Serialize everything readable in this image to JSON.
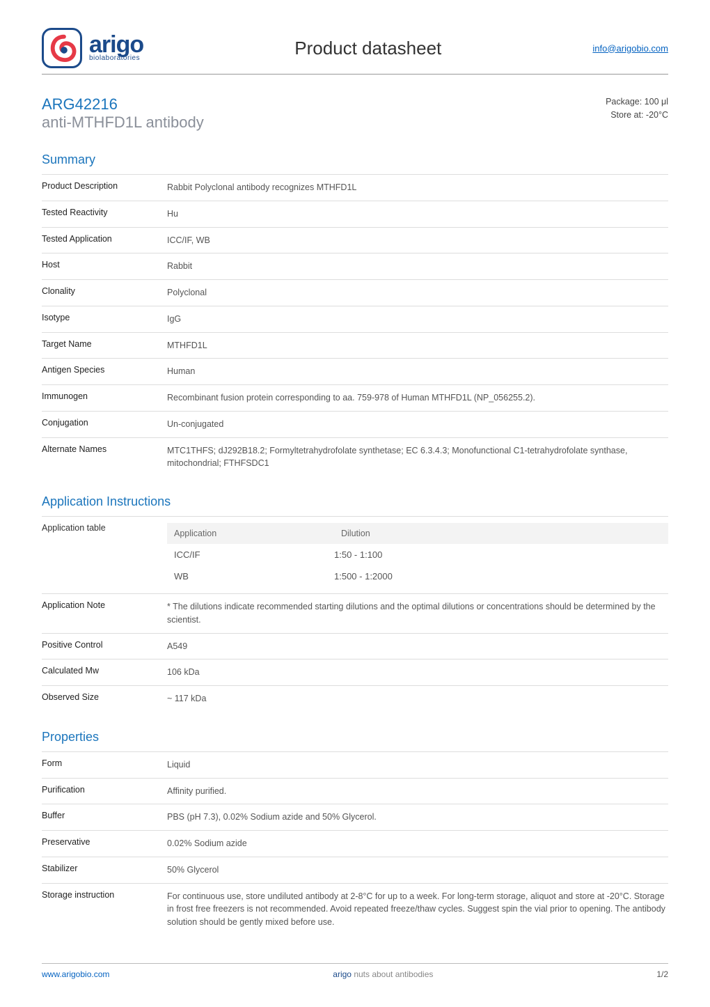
{
  "brand": {
    "name": "arigo",
    "sub": "biolaboratories"
  },
  "header": {
    "title": "Product datasheet",
    "email": "info@arigobio.com"
  },
  "product": {
    "code": "ARG42216",
    "name": "anti-MTHFD1L antibody",
    "package": "Package: 100 μl",
    "storage": "Store at: -20°C"
  },
  "sections": {
    "summary_title": "Summary",
    "summary": [
      {
        "k": "Product Description",
        "v": "Rabbit Polyclonal antibody recognizes MTHFD1L"
      },
      {
        "k": "Tested Reactivity",
        "v": "Hu"
      },
      {
        "k": "Tested Application",
        "v": "ICC/IF, WB"
      },
      {
        "k": "Host",
        "v": "Rabbit"
      },
      {
        "k": "Clonality",
        "v": "Polyclonal"
      },
      {
        "k": "Isotype",
        "v": "IgG"
      },
      {
        "k": "Target Name",
        "v": "MTHFD1L"
      },
      {
        "k": "Antigen Species",
        "v": "Human"
      },
      {
        "k": "Immunogen",
        "v": "Recombinant fusion protein corresponding to aa. 759-978 of Human MTHFD1L (NP_056255.2)."
      },
      {
        "k": "Conjugation",
        "v": "Un-conjugated"
      },
      {
        "k": "Alternate Names",
        "v": "MTC1THFS; dJ292B18.2; Formyltetrahydrofolate synthetase; EC 6.3.4.3; Monofunctional C1-tetrahydrofolate synthase, mitochondrial; FTHFSDC1"
      }
    ],
    "app_title": "Application Instructions",
    "app_table": {
      "label": "Application table",
      "headers": [
        "Application",
        "Dilution"
      ],
      "rows": [
        [
          "ICC/IF",
          "1:50 - 1:100"
        ],
        [
          "WB",
          "1:500 - 1:2000"
        ]
      ]
    },
    "app_rest": [
      {
        "k": "Application Note",
        "v": "* The dilutions indicate recommended starting dilutions and the optimal dilutions or concentrations should be determined by the scientist."
      },
      {
        "k": "Positive Control",
        "v": "A549"
      },
      {
        "k": "Calculated Mw",
        "v": "106 kDa"
      },
      {
        "k": "Observed Size",
        "v": "~ 117 kDa"
      }
    ],
    "props_title": "Properties",
    "props": [
      {
        "k": "Form",
        "v": "Liquid"
      },
      {
        "k": "Purification",
        "v": "Affinity purified."
      },
      {
        "k": "Buffer",
        "v": "PBS (pH 7.3), 0.02% Sodium azide and 50% Glycerol."
      },
      {
        "k": "Preservative",
        "v": "0.02% Sodium azide"
      },
      {
        "k": "Stabilizer",
        "v": "50% Glycerol"
      },
      {
        "k": "Storage instruction",
        "v": "For continuous use, store undiluted antibody at 2-8°C for up to a week. For long-term storage, aliquot and store at -20°C. Storage in frost free freezers is not recommended. Avoid repeated freeze/thaw cycles. Suggest spin the vial prior to opening. The antibody solution should be gently mixed before use."
      }
    ]
  },
  "footer": {
    "url": "www.arigobio.com",
    "mid_brand": "arigo",
    "mid_tag": "nuts about antibodies",
    "page": "1/2"
  },
  "colors": {
    "brand_blue": "#1b4a8a",
    "link_blue": "#0563c1",
    "section_blue": "#1b75bc",
    "grey_text": "#8a8f99",
    "border": "#dddddd"
  }
}
